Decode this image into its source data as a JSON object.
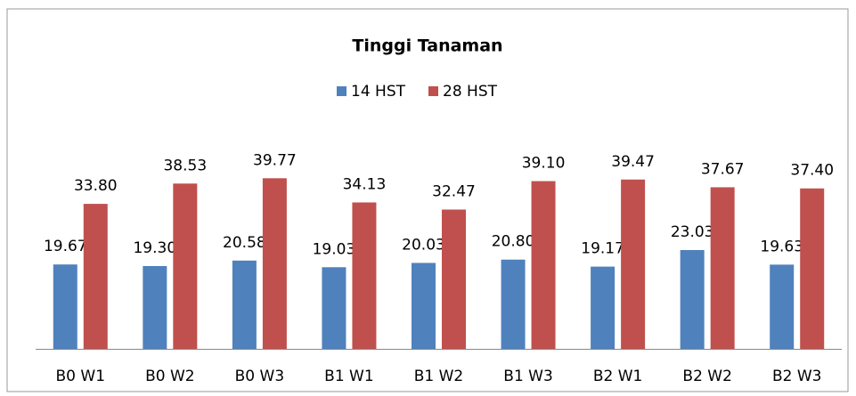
{
  "chart_data": {
    "type": "bar",
    "title": "Tinggi Tanaman",
    "categories": [
      "B0 W1",
      "B0 W2",
      "B0 W3",
      "B1 W1",
      "B1 W2",
      "B1 W3",
      "B2 W1",
      "B2 W2",
      "B2 W3"
    ],
    "series": [
      {
        "name": "14 HST",
        "color": "#4f81bd",
        "values": [
          19.67,
          19.3,
          20.58,
          19.03,
          20.03,
          20.8,
          19.17,
          23.03,
          19.63
        ],
        "value_labels": [
          "19.67",
          "19.30",
          "20.58",
          "19.03",
          "20.03",
          "20.80",
          "19.17",
          "23.03",
          "19.63"
        ]
      },
      {
        "name": "28 HST",
        "color": "#c0504d",
        "values": [
          33.8,
          38.53,
          39.77,
          34.13,
          32.47,
          39.1,
          39.47,
          37.67,
          37.4
        ],
        "value_labels": [
          "33.80",
          "38.53",
          "39.77",
          "34.13",
          "32.47",
          "39.10",
          "39.47",
          "37.67",
          "37.40"
        ]
      }
    ],
    "ylim": [
      0,
      45
    ],
    "legend": "top"
  }
}
